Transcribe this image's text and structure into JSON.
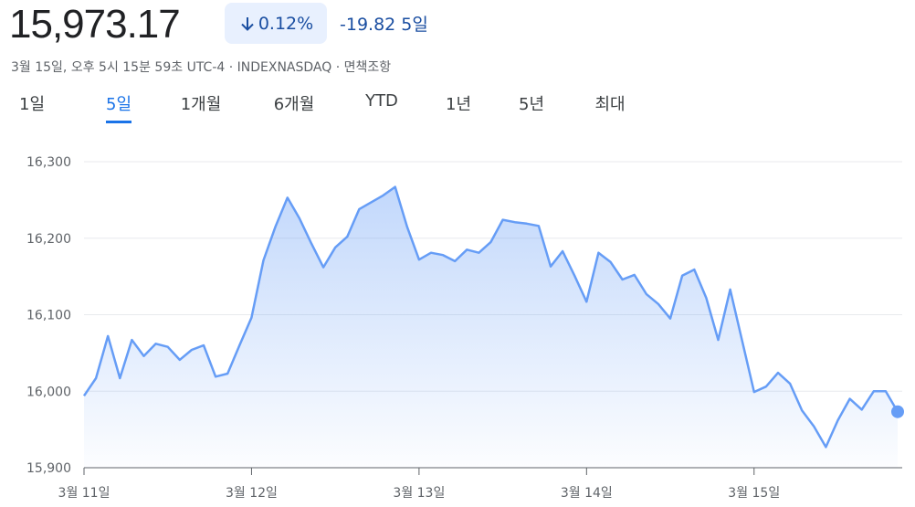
{
  "header": {
    "price": "15,973.17",
    "change_percent": "0.12%",
    "change": "-19.82",
    "period": "5일",
    "subtitle": "3월 15일, 오후 5시 15분 59초 UTC-4 · INDEXNASDAQ · 면책조항"
  },
  "tabs": [
    "1일",
    "5일",
    "1개월",
    "6개월",
    "YTD",
    "1년",
    "5년",
    "최대"
  ],
  "selected_tab": 1,
  "chart_data": {
    "type": "area",
    "color": "#669df6",
    "x": [
      0,
      1,
      2,
      3,
      4,
      5,
      6,
      7,
      8,
      9,
      10,
      11,
      12,
      13,
      14,
      15,
      16,
      17,
      18,
      19,
      20,
      21,
      22,
      23,
      24,
      25,
      26,
      27,
      28,
      29,
      30,
      31,
      32,
      33,
      34,
      35,
      36,
      37,
      38,
      39,
      40,
      41,
      42,
      43,
      44,
      45,
      46,
      47,
      48,
      49,
      50,
      51,
      52,
      53,
      54,
      55,
      56,
      57,
      58,
      59,
      60,
      61,
      62,
      63,
      64,
      65,
      66,
      67,
      68
    ],
    "values": [
      15994,
      16017,
      16072,
      16017,
      16067,
      16046,
      16062,
      16058,
      16041,
      16054,
      16060,
      16019,
      16023,
      16060,
      16096,
      16171,
      16215,
      16253,
      16226,
      16193,
      16162,
      16188,
      16202,
      16238,
      16247,
      16256,
      16267,
      16215,
      16172,
      16181,
      16178,
      16170,
      16185,
      16181,
      16195,
      16224,
      16221,
      16219,
      16216,
      16163,
      16183,
      16151,
      16117,
      16181,
      16169,
      16146,
      16152,
      16127,
      16114,
      16095,
      16151,
      16159,
      16122,
      16067,
      16133,
      16066,
      15999,
      16006,
      16024,
      16010,
      15975,
      15954,
      15927,
      15962,
      15990,
      15976,
      16000,
      16000,
      15973.17
    ],
    "xlim": [
      0,
      68
    ],
    "xticks": [
      {
        "value": 0,
        "label": "3월 11일"
      },
      {
        "value": 14,
        "label": "3월 12일"
      },
      {
        "value": 28,
        "label": "3월 13일"
      },
      {
        "value": 42,
        "label": "3월 14일"
      },
      {
        "value": 56,
        "label": "3월 15일"
      }
    ],
    "ylim": [
      15900,
      16300
    ],
    "yticks": [
      {
        "value": 15900,
        "label": "15,900"
      },
      {
        "value": 16000,
        "label": "16,000"
      },
      {
        "value": 16100,
        "label": "16,100"
      },
      {
        "value": 16200,
        "label": "16,200"
      },
      {
        "value": 16300,
        "label": "16,300"
      }
    ],
    "grid": true
  }
}
